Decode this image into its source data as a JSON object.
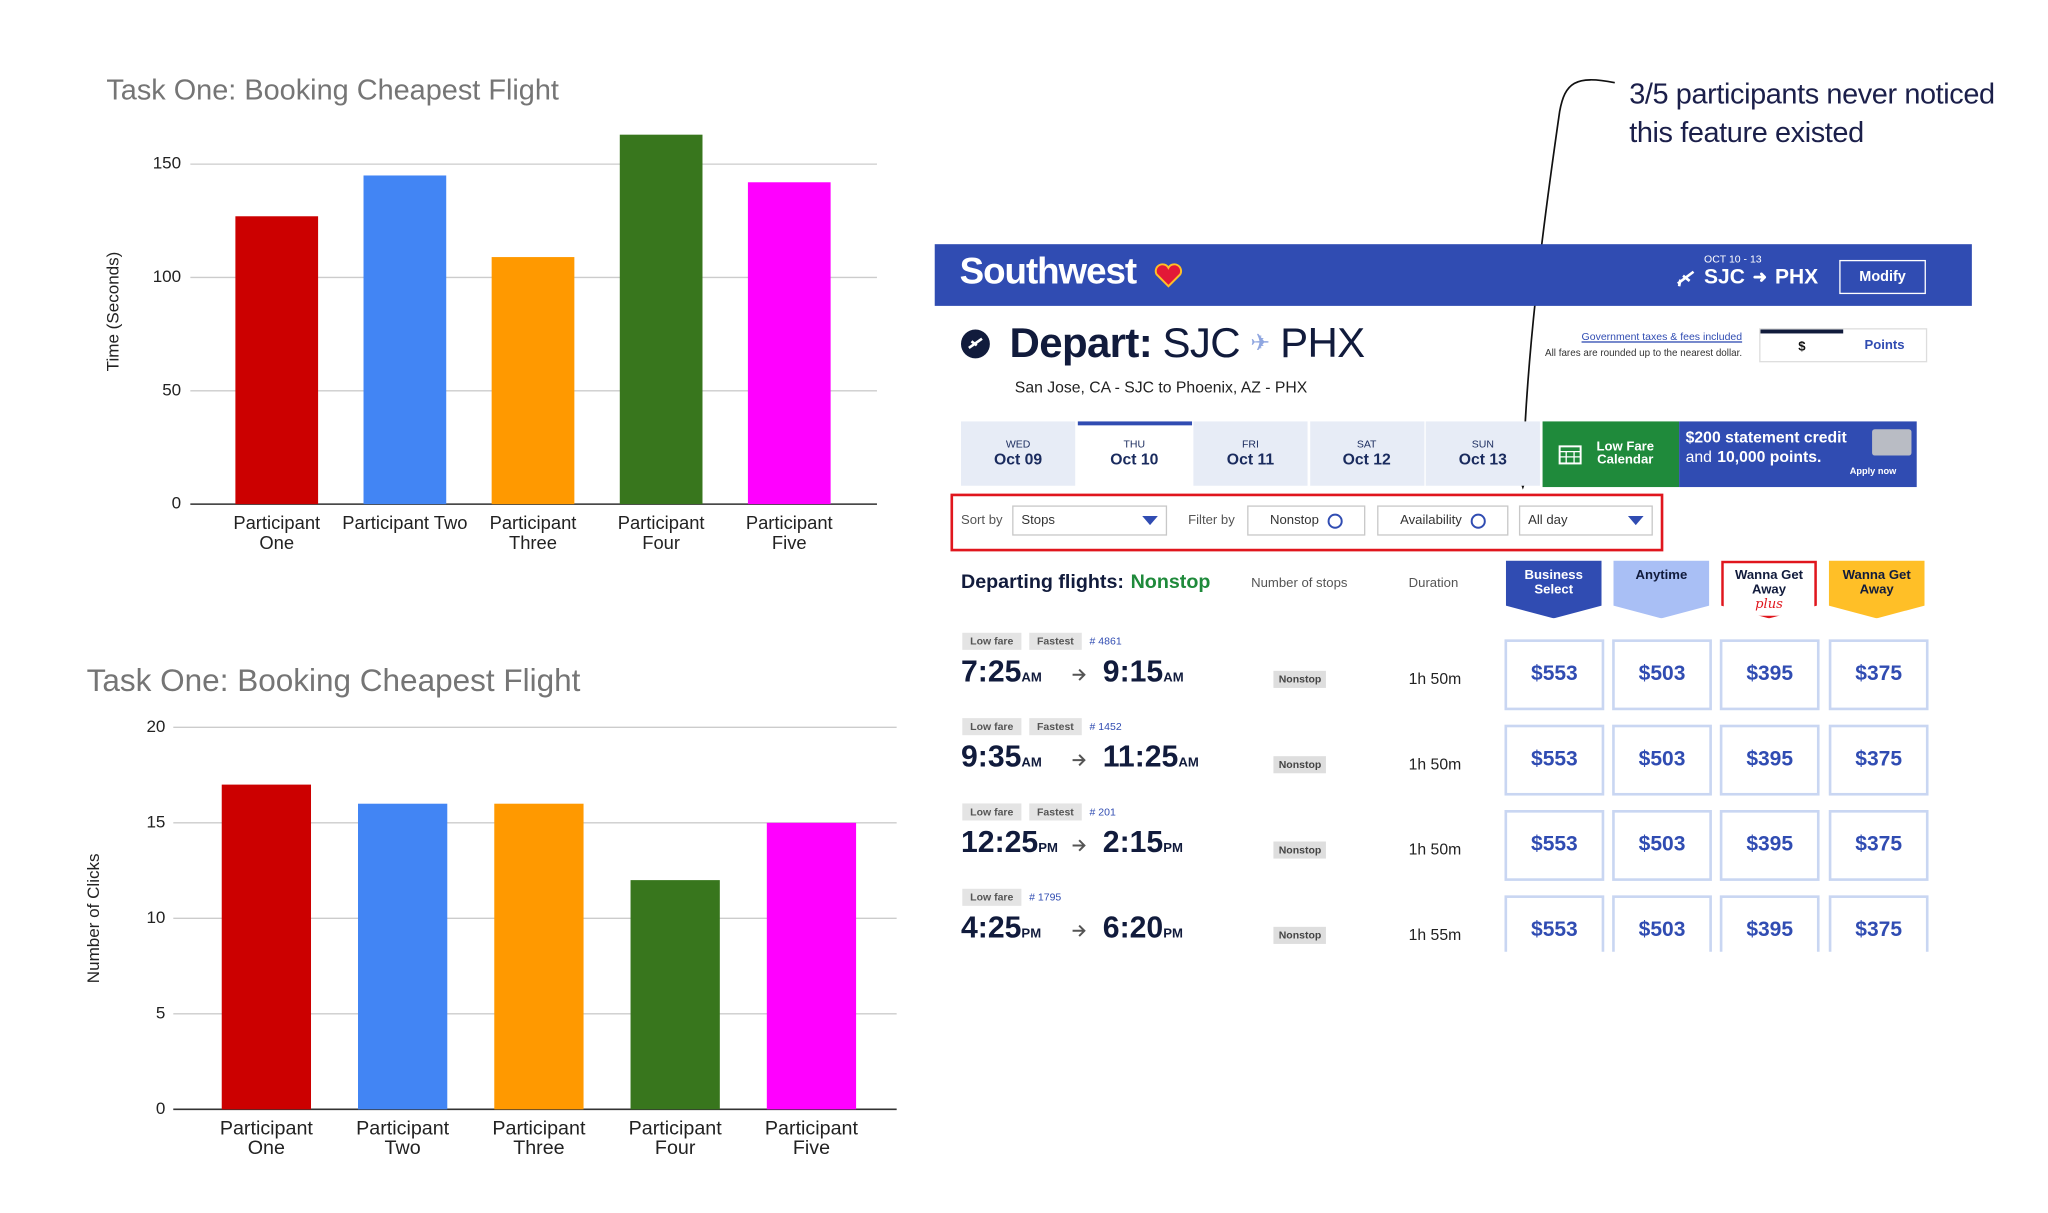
{
  "chart_data": [
    {
      "type": "bar",
      "title": "Task One: Booking Cheapest Flight",
      "y_label": "Time (Seconds)",
      "categories": [
        "Participant One",
        "Participant Two",
        "Participant Three",
        "Participant Four",
        "Participant Five"
      ],
      "values": [
        127,
        145,
        109,
        163,
        142
      ],
      "colors": [
        "#cc0000",
        "#4285f4",
        "#ff9900",
        "#38761d",
        "#ff00ff"
      ],
      "ylim": [
        0,
        170
      ],
      "yticks": [
        0,
        50,
        100,
        150
      ],
      "grid": true
    },
    {
      "type": "bar",
      "title": "Task One: Booking Cheapest Flight",
      "y_label": "Number of Clicks",
      "categories": [
        "Participant One",
        "Participant Two",
        "Participant Three",
        "Participant Four",
        "Participant Five"
      ],
      "values": [
        17,
        16,
        16,
        12,
        15
      ],
      "colors": [
        "#cc0000",
        "#4285f4",
        "#ff9900",
        "#38761d",
        "#ff00ff"
      ],
      "ylim": [
        0,
        20
      ],
      "yticks": [
        0,
        5,
        10,
        15,
        20
      ],
      "grid": true
    }
  ],
  "annotation": "3/5 participants never noticed this feature existed",
  "southwest": {
    "header": {
      "logo": "Southwest",
      "dates": "OCT 10 - 13",
      "origin": "SJC",
      "destination": "PHX",
      "button": "Modify"
    },
    "depart": {
      "label": "Depart:",
      "origin": "SJC",
      "destination": "PHX",
      "route": "San Jose, CA - SJC to Phoenix, AZ - PHX"
    },
    "fare_note": {
      "link": "Government taxes & fees included",
      "text": "All fares are rounded up to the nearest dollar.",
      "options": [
        "$",
        "Points"
      ]
    },
    "dates": [
      {
        "day": "WED",
        "date": "Oct 09"
      },
      {
        "day": "THU",
        "date": "Oct 10"
      },
      {
        "day": "FRI",
        "date": "Oct 11"
      },
      {
        "day": "SAT",
        "date": "Oct 12"
      },
      {
        "day": "SUN",
        "date": "Oct 13"
      }
    ],
    "calendar": "Low Fare Calendar",
    "promo": {
      "headline": "$200 statement credit",
      "text": "and",
      "bold": "10,000 points.",
      "link": "Apply now"
    },
    "filters": {
      "sort_label": "Sort by",
      "sort": "Stops",
      "filter_label": "Filter by",
      "options": [
        "Nonstop",
        "Availability"
      ],
      "time": "All day"
    },
    "results": {
      "title": "Departing flights:",
      "filter": "Nonstop",
      "columns": [
        "Number of stops",
        "Duration"
      ],
      "fares": [
        {
          "name": "Business Select"
        },
        {
          "name": "Anytime"
        },
        {
          "name": "Wanna Get Away",
          "tag": "plus"
        },
        {
          "name": "Wanna Get Away"
        }
      ]
    },
    "flights": [
      {
        "tags": [
          "Low fare",
          "Fastest"
        ],
        "number": "# 4861",
        "depart": "7:25",
        "depart_period": "AM",
        "arrive": "9:15",
        "arrive_period": "AM",
        "stops": "Nonstop",
        "duration": "1h 50m",
        "fares": [
          "$553",
          "$503",
          "$395",
          "$375"
        ]
      },
      {
        "tags": [
          "Low fare",
          "Fastest"
        ],
        "number": "# 1452",
        "depart": "9:35",
        "depart_period": "AM",
        "arrive": "11:25",
        "arrive_period": "AM",
        "stops": "Nonstop",
        "duration": "1h 50m",
        "fares": [
          "$553",
          "$503",
          "$395",
          "$375"
        ]
      },
      {
        "tags": [
          "Low fare",
          "Fastest"
        ],
        "number": "# 201",
        "depart": "12:25",
        "depart_period": "PM",
        "arrive": "2:15",
        "arrive_period": "PM",
        "stops": "Nonstop",
        "duration": "1h 50m",
        "fares": [
          "$553",
          "$503",
          "$395",
          "$375"
        ]
      },
      {
        "tags": [
          "Low fare"
        ],
        "number": "# 1795",
        "depart": "4:25",
        "depart_period": "PM",
        "arrive": "6:20",
        "arrive_period": "PM",
        "stops": "Nonstop",
        "duration": "1h 55m",
        "fares": [
          "$553",
          "$503",
          "$395",
          "$375"
        ]
      }
    ]
  }
}
